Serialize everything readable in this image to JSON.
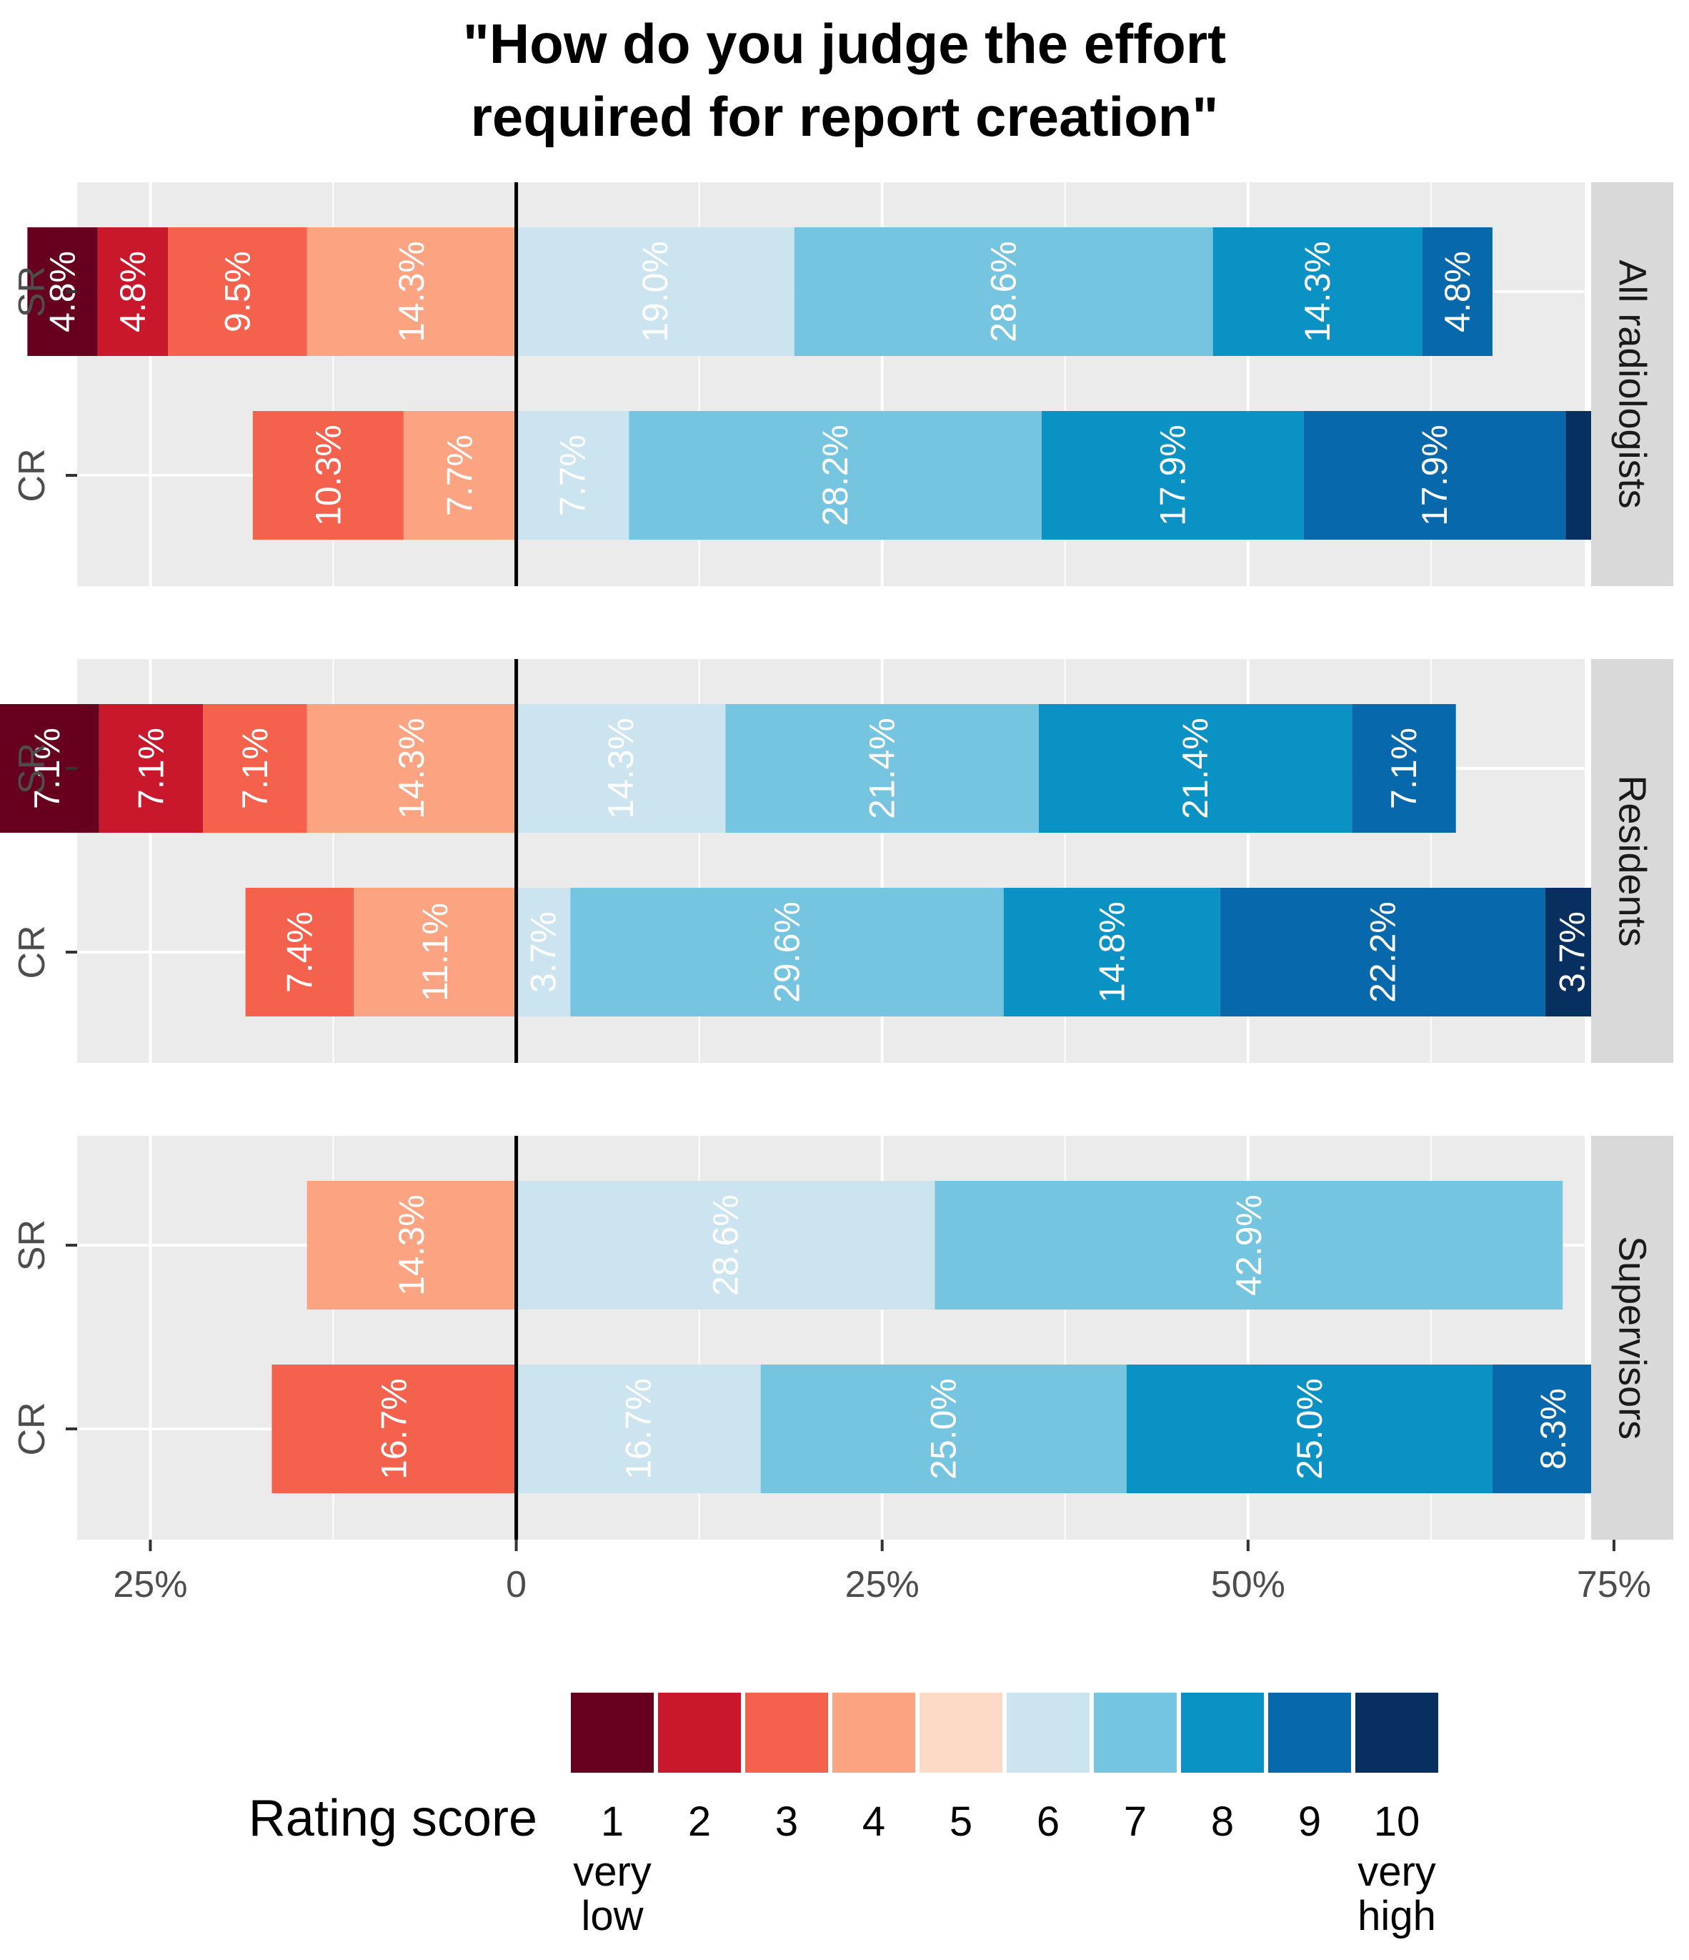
{
  "chart_data": {
    "type": "bar",
    "orientation": "horizontal",
    "stacking": "diverging",
    "title": "\"How do you judge the effort\nrequired for report creation\"",
    "xlabel": "",
    "ylabel": "",
    "xlim": [
      -0.3,
      0.73
    ],
    "x_ticks": [
      -0.25,
      0,
      0.25,
      0.5,
      0.75
    ],
    "x_tick_labels": [
      "25%",
      "0",
      "25%",
      "50%",
      "75%"
    ],
    "grid": true,
    "neutral_split_score": 5,
    "colors": [
      "#67001f",
      "#c9182b",
      "#f4624d",
      "#fca381",
      "#fcdac5",
      "#cce4f0",
      "#76c5e0",
      "#0b92c5",
      "#0868ac",
      "#072f5f"
    ],
    "legend": {
      "title": "Rating score",
      "position": "bottom",
      "scores": [
        "1",
        "2",
        "3",
        "4",
        "5",
        "6",
        "7",
        "8",
        "9",
        "10"
      ],
      "low_label": "very\nlow",
      "high_label": "very\nhigh"
    },
    "panels": [
      {
        "name": "All radiologists",
        "rows": [
          {
            "label": "SR",
            "values": [
              0.048,
              0.048,
              0.095,
              0.143,
              0,
              0.19,
              0.286,
              0.143,
              0.048,
              0
            ],
            "labels": [
              "4.8%",
              "4.8%",
              "9.5%",
              "14.3%",
              "",
              "19.0%",
              "28.6%",
              "14.3%",
              "4.8%",
              ""
            ]
          },
          {
            "label": "CR",
            "values": [
              0,
              0,
              0.103,
              0.077,
              0,
              0.077,
              0.282,
              0.179,
              0.179,
              0.026
            ],
            "labels": [
              "",
              "",
              "10.3%",
              "7.7%",
              "",
              "7.7%",
              "28.2%",
              "17.9%",
              "17.9%",
              ""
            ]
          }
        ]
      },
      {
        "name": "Residents",
        "rows": [
          {
            "label": "SR",
            "values": [
              0.071,
              0.071,
              0.071,
              0.143,
              0,
              0.143,
              0.214,
              0.214,
              0.071,
              0
            ],
            "labels": [
              "7.1%",
              "7.1%",
              "7.1%",
              "14.3%",
              "",
              "14.3%",
              "21.4%",
              "21.4%",
              "7.1%",
              ""
            ]
          },
          {
            "label": "CR",
            "values": [
              0,
              0,
              0.074,
              0.111,
              0,
              0.037,
              0.296,
              0.148,
              0.222,
              0.037
            ],
            "labels": [
              "",
              "",
              "7.4%",
              "11.1%",
              "",
              "3.7%",
              "29.6%",
              "14.8%",
              "22.2%",
              "3.7%"
            ]
          }
        ]
      },
      {
        "name": "Supervisors",
        "rows": [
          {
            "label": "SR",
            "values": [
              0,
              0,
              0,
              0.143,
              0,
              0.286,
              0.429,
              0,
              0,
              0
            ],
            "labels": [
              "",
              "",
              "",
              "14.3%",
              "",
              "28.6%",
              "42.9%",
              "",
              "",
              ""
            ]
          },
          {
            "label": "CR",
            "values": [
              0,
              0,
              0.167,
              0,
              0,
              0.167,
              0.25,
              0.25,
              0.083,
              0
            ],
            "labels": [
              "",
              "",
              "16.7%",
              "",
              "",
              "16.7%",
              "25.0%",
              "25.0%",
              "8.3%",
              ""
            ]
          }
        ]
      }
    ]
  }
}
